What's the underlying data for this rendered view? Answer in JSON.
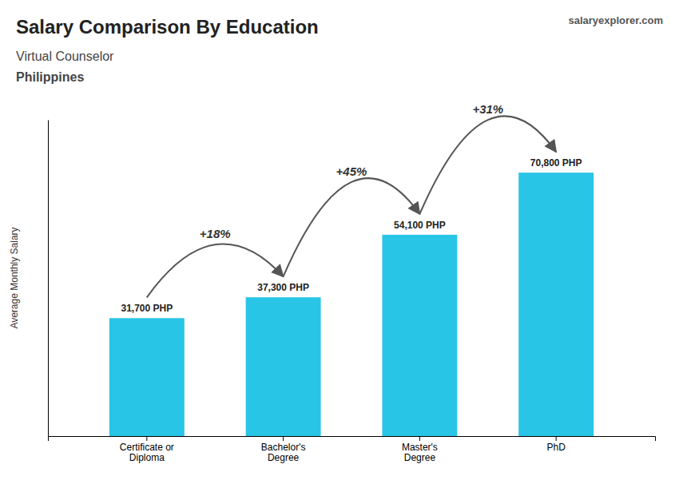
{
  "chart_data": {
    "type": "bar",
    "title": "Salary Comparison By Education",
    "subtitle": [
      "Virtual Counselor",
      "Philippines"
    ],
    "brand": "salaryexplorer.com",
    "ylabel": "Average Monthly Salary",
    "categories": [
      "Certificate or\nDiploma",
      "Bachelor's\nDegree",
      "Master's\nDegree",
      "PhD"
    ],
    "values": [
      31700,
      37300,
      54100,
      70800
    ],
    "value_labels": [
      "31,700 PHP",
      "37,300 PHP",
      "54,100 PHP",
      "70,800 PHP"
    ],
    "data_labels": true,
    "annotations": [
      "+18%",
      "+45%",
      "+31%"
    ],
    "color": "#29c5e6",
    "ylim": [
      0,
      85000
    ],
    "tick_labels": "x",
    "grid": false
  }
}
